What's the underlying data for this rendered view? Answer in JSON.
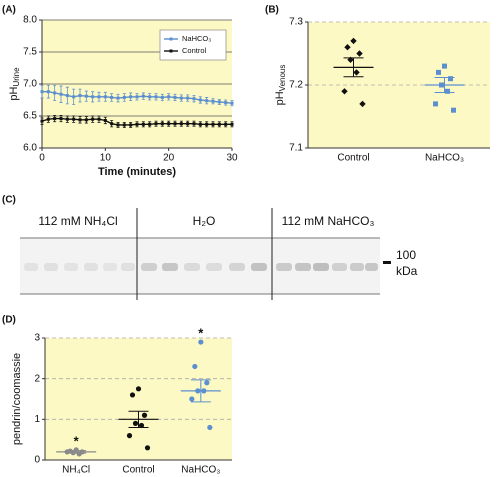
{
  "chart_data": [
    {
      "type": "line",
      "panel_label": "(A)",
      "x_label": "Time (minutes)",
      "y_label": "pH",
      "y_label_sub": "Urine",
      "background": "#fdf9c4",
      "grid": true,
      "grid_style": "solid",
      "legend": "upper right",
      "xlim": [
        0,
        30
      ],
      "xticks": [
        0,
        10,
        20,
        30
      ],
      "ylim": [
        6,
        8
      ],
      "yticks": [
        {
          "value": 6,
          "label": "6.0"
        },
        {
          "value": 6.5,
          "label": "6.5"
        },
        {
          "value": 7,
          "label": "7.0"
        },
        {
          "value": 7.5,
          "label": "7.5"
        },
        {
          "value": 8,
          "label": "8.0"
        }
      ],
      "x": [
        0,
        1,
        2,
        3,
        4,
        5,
        6,
        7,
        8,
        9,
        10,
        11,
        12,
        13,
        14,
        15,
        16,
        17,
        18,
        19,
        20,
        21,
        22,
        23,
        24,
        25,
        26,
        27,
        28,
        29,
        30
      ],
      "series": [
        {
          "name": "NaHCO₃",
          "color": "#5b8fd0",
          "values": [
            6.88,
            6.88,
            6.86,
            6.84,
            6.82,
            6.8,
            6.82,
            6.81,
            6.8,
            6.8,
            6.8,
            6.79,
            6.78,
            6.79,
            6.8,
            6.8,
            6.81,
            6.8,
            6.8,
            6.79,
            6.8,
            6.79,
            6.78,
            6.78,
            6.77,
            6.75,
            6.74,
            6.73,
            6.72,
            6.71,
            6.7
          ],
          "errors": [
            0.1,
            0.1,
            0.12,
            0.13,
            0.13,
            0.12,
            0.1,
            0.08,
            0.08,
            0.07,
            0.07,
            0.06,
            0.06,
            0.06,
            0.06,
            0.05,
            0.05,
            0.05,
            0.05,
            0.05,
            0.05,
            0.05,
            0.05,
            0.05,
            0.05,
            0.05,
            0.05,
            0.04,
            0.04,
            0.04,
            0.04
          ]
        },
        {
          "name": "Control",
          "color": "#111111",
          "values": [
            6.42,
            6.45,
            6.46,
            6.46,
            6.45,
            6.45,
            6.44,
            6.44,
            6.45,
            6.45,
            6.43,
            6.38,
            6.36,
            6.36,
            6.36,
            6.37,
            6.37,
            6.37,
            6.38,
            6.38,
            6.38,
            6.38,
            6.38,
            6.38,
            6.38,
            6.37,
            6.37,
            6.37,
            6.37,
            6.37,
            6.37
          ],
          "errors": [
            0.05,
            0.05,
            0.05,
            0.05,
            0.05,
            0.05,
            0.05,
            0.05,
            0.05,
            0.05,
            0.05,
            0.05,
            0.04,
            0.04,
            0.04,
            0.04,
            0.04,
            0.04,
            0.04,
            0.04,
            0.04,
            0.04,
            0.04,
            0.04,
            0.04,
            0.04,
            0.04,
            0.04,
            0.04,
            0.04,
            0.04
          ]
        }
      ]
    },
    {
      "type": "dot",
      "panel_label": "(B)",
      "y_label": "pH",
      "y_label_sub": "Venous",
      "background": "#fdf9c4",
      "grid": true,
      "grid_style": "dashed",
      "ylim": [
        7.1,
        7.3
      ],
      "yticks": [
        7.1,
        7.2,
        7.3
      ],
      "groups": [
        {
          "category": "Control",
          "color": "#111111",
          "marker": "diamond",
          "points": [
            7.27,
            7.26,
            7.25,
            7.24,
            7.22,
            7.19,
            7.17
          ],
          "mean": 7.228,
          "sem": 0.015
        },
        {
          "category": "NaHCO₃",
          "color": "#5b8fd0",
          "marker": "square",
          "points": [
            7.23,
            7.22,
            7.21,
            7.2,
            7.19,
            7.17,
            7.16
          ],
          "mean": 7.2,
          "sem": 0.012
        }
      ]
    },
    {
      "type": "dot",
      "panel_label": "(D)",
      "y_label": "pendrin/coomassie",
      "background": "#fdf9c4",
      "grid": true,
      "grid_style": "dashed",
      "ylim": [
        0,
        3
      ],
      "yticks": [
        0,
        1,
        2,
        3
      ],
      "groups": [
        {
          "category": "NH₄Cl",
          "color": "#8a8a8a",
          "marker": "circle",
          "points": [
            0.25,
            0.22,
            0.2,
            0.18,
            0.15,
            0.2
          ],
          "mean": 0.2,
          "sem": 0.03,
          "annotation": "*"
        },
        {
          "category": "Control",
          "color": "#111111",
          "marker": "circle",
          "points": [
            1.75,
            1.6,
            1.1,
            0.9,
            0.85,
            0.6,
            0.3
          ],
          "mean": 1.0,
          "sem": 0.2
        },
        {
          "category": "NaHCO₃",
          "color": "#5b8fd0",
          "marker": "circle",
          "points": [
            2.9,
            2.3,
            1.9,
            1.7,
            1.7,
            1.5,
            0.8
          ],
          "mean": 1.7,
          "sem": 0.27,
          "annotation": "*"
        }
      ]
    }
  ],
  "blot": {
    "panel_label": "(C)",
    "lanes": [
      "112 mM NH₄Cl",
      "H₂O",
      "112 mM NaHCO₃"
    ],
    "marker_value": "100",
    "marker_unit": "kDa"
  }
}
